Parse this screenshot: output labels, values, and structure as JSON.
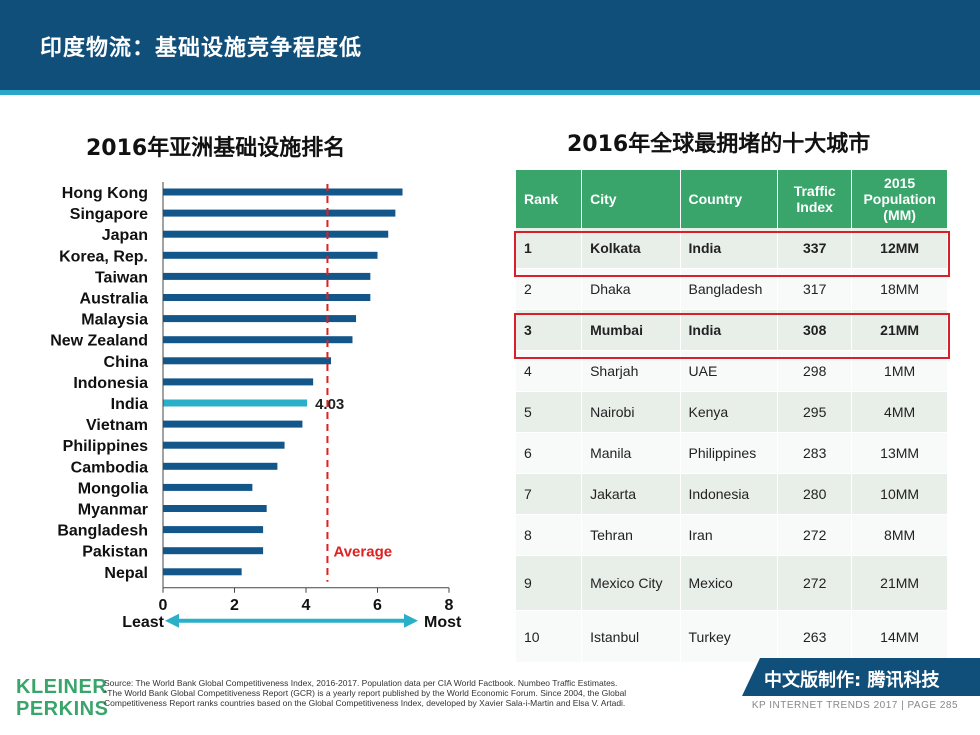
{
  "header": {
    "title": "印度物流：基础设施竞争程度低"
  },
  "left_title": "2016年亚洲基础设施排名",
  "right_title": "2016年全球最拥堵的十大城市",
  "chart_data": {
    "type": "bar",
    "orientation": "horizontal",
    "title": "2016年亚洲基础设施排名",
    "categories": [
      "Hong Kong",
      "Singapore",
      "Japan",
      "Korea, Rep.",
      "Taiwan",
      "Australia",
      "Malaysia",
      "New Zealand",
      "China",
      "Indonesia",
      "India",
      "Vietnam",
      "Philippines",
      "Cambodia",
      "Mongolia",
      "Myanmar",
      "Bangladesh",
      "Pakistan",
      "Nepal"
    ],
    "values": [
      6.7,
      6.5,
      6.3,
      6.0,
      5.8,
      5.8,
      5.4,
      5.3,
      4.7,
      4.2,
      4.03,
      3.9,
      3.4,
      3.2,
      2.5,
      2.9,
      2.8,
      2.8,
      2.2
    ],
    "highlight": {
      "category": "India",
      "label": "4.03",
      "color": "#2aafc9"
    },
    "bar_color": "#13568a",
    "average": {
      "value": 4.6,
      "label": "Average",
      "color": "#e02020"
    },
    "xlim": [
      0,
      8
    ],
    "xticks": [
      "0",
      "2",
      "4",
      "6",
      "8"
    ],
    "axis_ends": {
      "left": "Least",
      "right": "Most",
      "arrow_color": "#2aafc9"
    },
    "grid": false
  },
  "table": {
    "headers": [
      "Rank",
      "City",
      "Country",
      "Traffic Index",
      "2015 Population (MM)"
    ],
    "rows": [
      [
        "1",
        "Kolkata",
        "India",
        "337",
        "12MM"
      ],
      [
        "2",
        "Dhaka",
        "Bangladesh",
        "317",
        "18MM"
      ],
      [
        "3",
        "Mumbai",
        "India",
        "308",
        "21MM"
      ],
      [
        "4",
        "Sharjah",
        "UAE",
        "298",
        "1MM"
      ],
      [
        "5",
        "Nairobi",
        "Kenya",
        "295",
        "4MM"
      ],
      [
        "6",
        "Manila",
        "Philippines",
        "283",
        "13MM"
      ],
      [
        "7",
        "Jakarta",
        "Indonesia",
        "280",
        "10MM"
      ],
      [
        "8",
        "Tehran",
        "Iran",
        "272",
        "8MM"
      ],
      [
        "9",
        "Mexico City",
        "Mexico",
        "272",
        "21MM"
      ],
      [
        "10",
        "Istanbul",
        "Turkey",
        "263",
        "14MM"
      ]
    ],
    "highlighted_ranks": [
      "1",
      "3"
    ],
    "header_color": "#3aa56b",
    "highlight_color": "#d9202a"
  },
  "footer": {
    "logo_line1": "KLEINER",
    "logo_line2": "PERKINS",
    "source_lines": [
      "Source: The World Bank Global Competitiveness Index, 2016-2017. Population data per CIA World Factbook. Numbeo Traffic Estimates.",
      "*The World Bank Global Competitiveness Report (GCR) is a yearly report published by the World Economic Forum. Since 2004, the Global",
      "Competitiveness Report ranks countries based on the Global Competitiveness Index, developed by Xavier Sala-i-Martin and Elsa V. Artadi."
    ],
    "badge": "中文版制作: 腾讯科技",
    "page_label": "KP INTERNET TRENDS 2017   |   PAGE 285"
  }
}
